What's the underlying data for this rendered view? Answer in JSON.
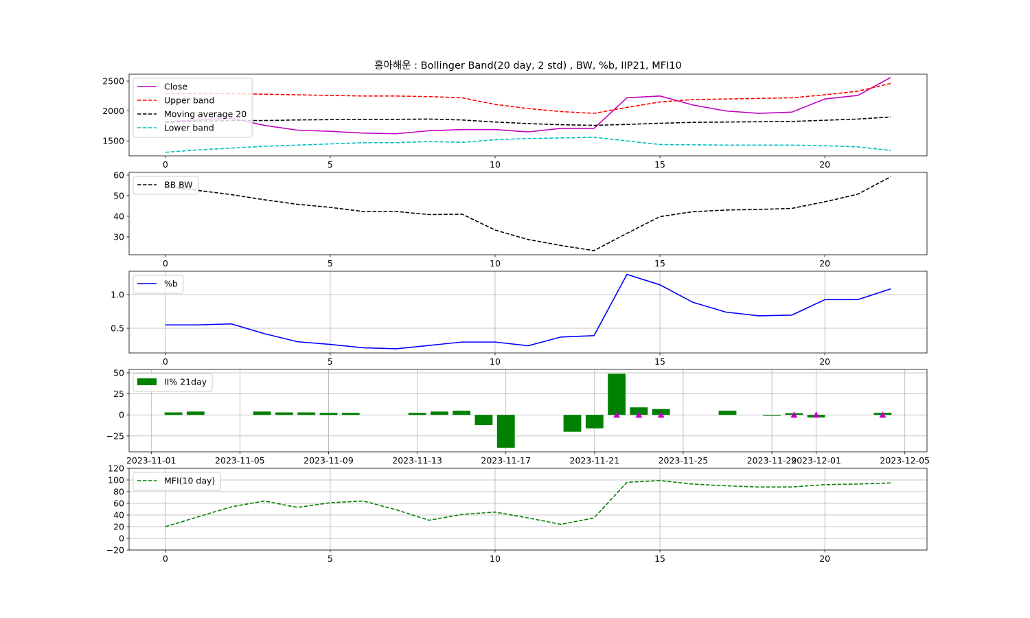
{
  "chart_data": [
    {
      "type": "line",
      "title": "흥아해운 : Bollinger Band(20 day, 2 std) , BW, %b, IIP21, MFI10",
      "x": [
        0,
        1,
        2,
        3,
        4,
        5,
        6,
        7,
        8,
        9,
        10,
        11,
        12,
        13,
        14,
        15,
        16,
        17,
        18,
        19,
        20,
        21,
        22
      ],
      "xlim": [
        -1.1,
        23.1
      ],
      "xticks": [
        0,
        5,
        10,
        15,
        20
      ],
      "ylim": [
        1250,
        2615
      ],
      "yticks": [
        1500,
        2000,
        2500
      ],
      "grid": false,
      "legend": "upper-left",
      "series": [
        {
          "name": "Close",
          "color": "#bf00bf",
          "style": "solid",
          "values": [
            1820,
            1850,
            1880,
            1760,
            1680,
            1660,
            1630,
            1620,
            1670,
            1690,
            1690,
            1650,
            1710,
            1710,
            2220,
            2250,
            2100,
            2000,
            1960,
            1980,
            2200,
            2260,
            2560
          ]
        },
        {
          "name": "Upper band",
          "color": "#ff0000",
          "style": "dashed",
          "values": [
            2290,
            2290,
            2290,
            2280,
            2270,
            2260,
            2250,
            2250,
            2240,
            2220,
            2110,
            2040,
            1990,
            1960,
            2060,
            2150,
            2190,
            2200,
            2210,
            2220,
            2270,
            2330,
            2460
          ]
        },
        {
          "name": "Moving average 20",
          "color": "#000000",
          "style": "dashed",
          "values": [
            1810,
            1830,
            1840,
            1840,
            1850,
            1855,
            1860,
            1860,
            1865,
            1850,
            1815,
            1790,
            1770,
            1760,
            1775,
            1795,
            1810,
            1815,
            1820,
            1825,
            1845,
            1865,
            1900
          ]
        },
        {
          "name": "Lower band",
          "color": "#00bfbf",
          "style": "dashed",
          "values": [
            1310,
            1350,
            1380,
            1410,
            1430,
            1450,
            1470,
            1470,
            1490,
            1475,
            1520,
            1540,
            1550,
            1560,
            1500,
            1440,
            1435,
            1430,
            1430,
            1430,
            1420,
            1400,
            1340
          ]
        }
      ]
    },
    {
      "type": "line",
      "x": [
        0,
        1,
        2,
        3,
        4,
        5,
        6,
        7,
        8,
        9,
        10,
        11,
        12,
        13,
        14,
        15,
        16,
        17,
        18,
        19,
        20,
        21,
        22
      ],
      "xlim": [
        -1.1,
        23.1
      ],
      "xticks": [
        0,
        5,
        10,
        15,
        20
      ],
      "ylim": [
        21.3,
        61.3
      ],
      "yticks": [
        30,
        40,
        50,
        60
      ],
      "grid": false,
      "legend": "upper-left",
      "series": [
        {
          "name": "BB BW",
          "color": "#000000",
          "style": "dashed",
          "values": [
            54.5,
            52.5,
            50.5,
            48,
            45.8,
            44.3,
            42.3,
            42.3,
            40.8,
            41,
            33.3,
            28.7,
            25.8,
            23.3,
            31.7,
            39.8,
            42.2,
            43,
            43.3,
            43.8,
            47,
            50.7,
            59.2
          ]
        }
      ]
    },
    {
      "type": "line",
      "x": [
        0,
        1,
        2,
        3,
        4,
        5,
        6,
        7,
        8,
        9,
        10,
        11,
        12,
        13,
        14,
        15,
        16,
        17,
        18,
        19,
        20,
        21,
        22
      ],
      "xlim": [
        -1.1,
        23.1
      ],
      "xticks": [
        0,
        5,
        10,
        15,
        20
      ],
      "ylim": [
        0.133,
        1.347
      ],
      "yticks": [
        0.5,
        {
          "value": 1,
          "label": "1.0"
        }
      ],
      "grid": true,
      "legend": "upper-left",
      "series": [
        {
          "name": "%b",
          "color": "#0000ff",
          "style": "solid",
          "values": [
            0.55,
            0.55,
            0.565,
            0.42,
            0.3,
            0.26,
            0.21,
            0.195,
            0.245,
            0.295,
            0.295,
            0.24,
            0.37,
            0.39,
            1.3,
            1.145,
            0.885,
            0.74,
            0.685,
            0.695,
            0.925,
            0.925,
            1.085
          ]
        }
      ]
    },
    {
      "type": "bar",
      "x": [
        "2023-11-02",
        "2023-11-03",
        "2023-11-06",
        "2023-11-07",
        "2023-11-08",
        "2023-11-09",
        "2023-11-10",
        "2023-11-13",
        "2023-11-14",
        "2023-11-15",
        "2023-11-16",
        "2023-11-17",
        "2023-11-20",
        "2023-11-21",
        "2023-11-22",
        "2023-11-23",
        "2023-11-24",
        "2023-11-27",
        "2023-11-28",
        "2023-11-29",
        "2023-11-30",
        "2023-12-01",
        "2023-12-04"
      ],
      "xlim": [
        "2023-10-31",
        "2023-12-06"
      ],
      "xticks": [
        "2023-11-01",
        "2023-11-05",
        "2023-11-09",
        "2023-11-13",
        "2023-11-17",
        "2023-11-21",
        "2023-11-25",
        "2023-11-29",
        "2023-12-01",
        "2023-12-05"
      ],
      "ylim": [
        -43.9,
        54.1
      ],
      "yticks": [
        {
          "value": -25,
          "label": "−25"
        },
        0,
        25,
        50
      ],
      "grid": true,
      "legend": "upper-left",
      "series": [
        {
          "name": "II% 21day",
          "color": "#008000",
          "values": [
            3,
            4,
            4,
            3,
            3,
            2.5,
            2.5,
            2.5,
            4,
            5,
            -12,
            -39,
            -20,
            -16,
            49,
            9,
            7,
            5,
            0,
            -1,
            2,
            -3,
            2.5
          ]
        },
        {
          "type": "scatter",
          "marker": "triangle",
          "color": "#bf00bf",
          "values": [
            null,
            null,
            null,
            null,
            null,
            null,
            null,
            null,
            null,
            null,
            null,
            null,
            null,
            null,
            0,
            0,
            0,
            null,
            null,
            null,
            0,
            0,
            0
          ]
        }
      ]
    },
    {
      "type": "line",
      "x": [
        0,
        1,
        2,
        3,
        4,
        5,
        6,
        7,
        8,
        9,
        10,
        11,
        12,
        13,
        14,
        15,
        16,
        17,
        18,
        19,
        20,
        21,
        22
      ],
      "xlim": [
        -1.1,
        23.1
      ],
      "xticks": [
        0,
        5,
        10,
        15,
        20
      ],
      "ylim": [
        -20,
        120
      ],
      "yticks": [
        {
          "value": -20,
          "label": "−20"
        },
        0,
        20,
        40,
        60,
        80,
        100,
        120
      ],
      "grid": true,
      "legend": "upper-left",
      "series": [
        {
          "name": "MFI(10 day)",
          "color": "#008000",
          "style": "dashed",
          "values": [
            20,
            37,
            54,
            64,
            53,
            61,
            64,
            49,
            31,
            41,
            45,
            35,
            24,
            35,
            96,
            99,
            93,
            90,
            88,
            88,
            92,
            93,
            95
          ]
        }
      ]
    }
  ]
}
